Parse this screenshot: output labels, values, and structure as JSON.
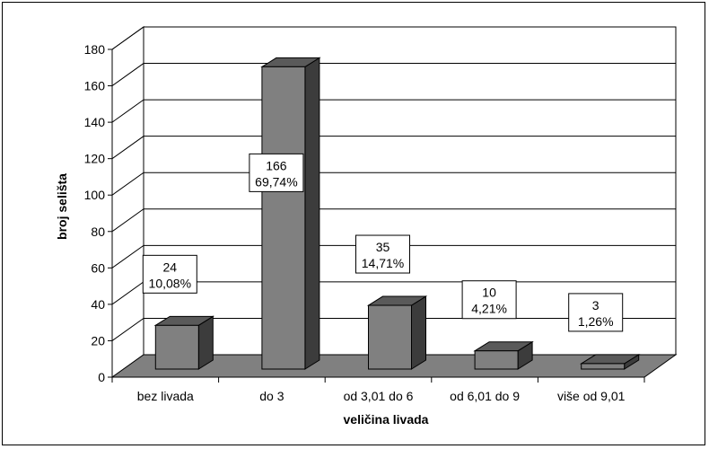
{
  "chart_data": {
    "type": "bar",
    "categories": [
      "bez livada",
      "do 3",
      "od 3,01 do 6",
      "od 6,01 do 9",
      "više od 9,01"
    ],
    "values": [
      24,
      166,
      35,
      10,
      3
    ],
    "percent_labels": [
      "10,08%",
      "69,74%",
      "14,71%",
      "4,21%",
      "1,26%"
    ],
    "title": "",
    "xlabel": "veličina livada",
    "ylabel": "broj selišta",
    "ylim": [
      0,
      180
    ],
    "yticks": [
      0,
      20,
      40,
      60,
      80,
      100,
      120,
      140,
      160,
      180
    ],
    "grid": true,
    "legend": "none",
    "colors": {
      "bar_front": "#808080",
      "bar_top": "#5a5a5a",
      "bar_side": "#3c3c3c",
      "floor": "#808080",
      "gridline": "#000000"
    }
  }
}
